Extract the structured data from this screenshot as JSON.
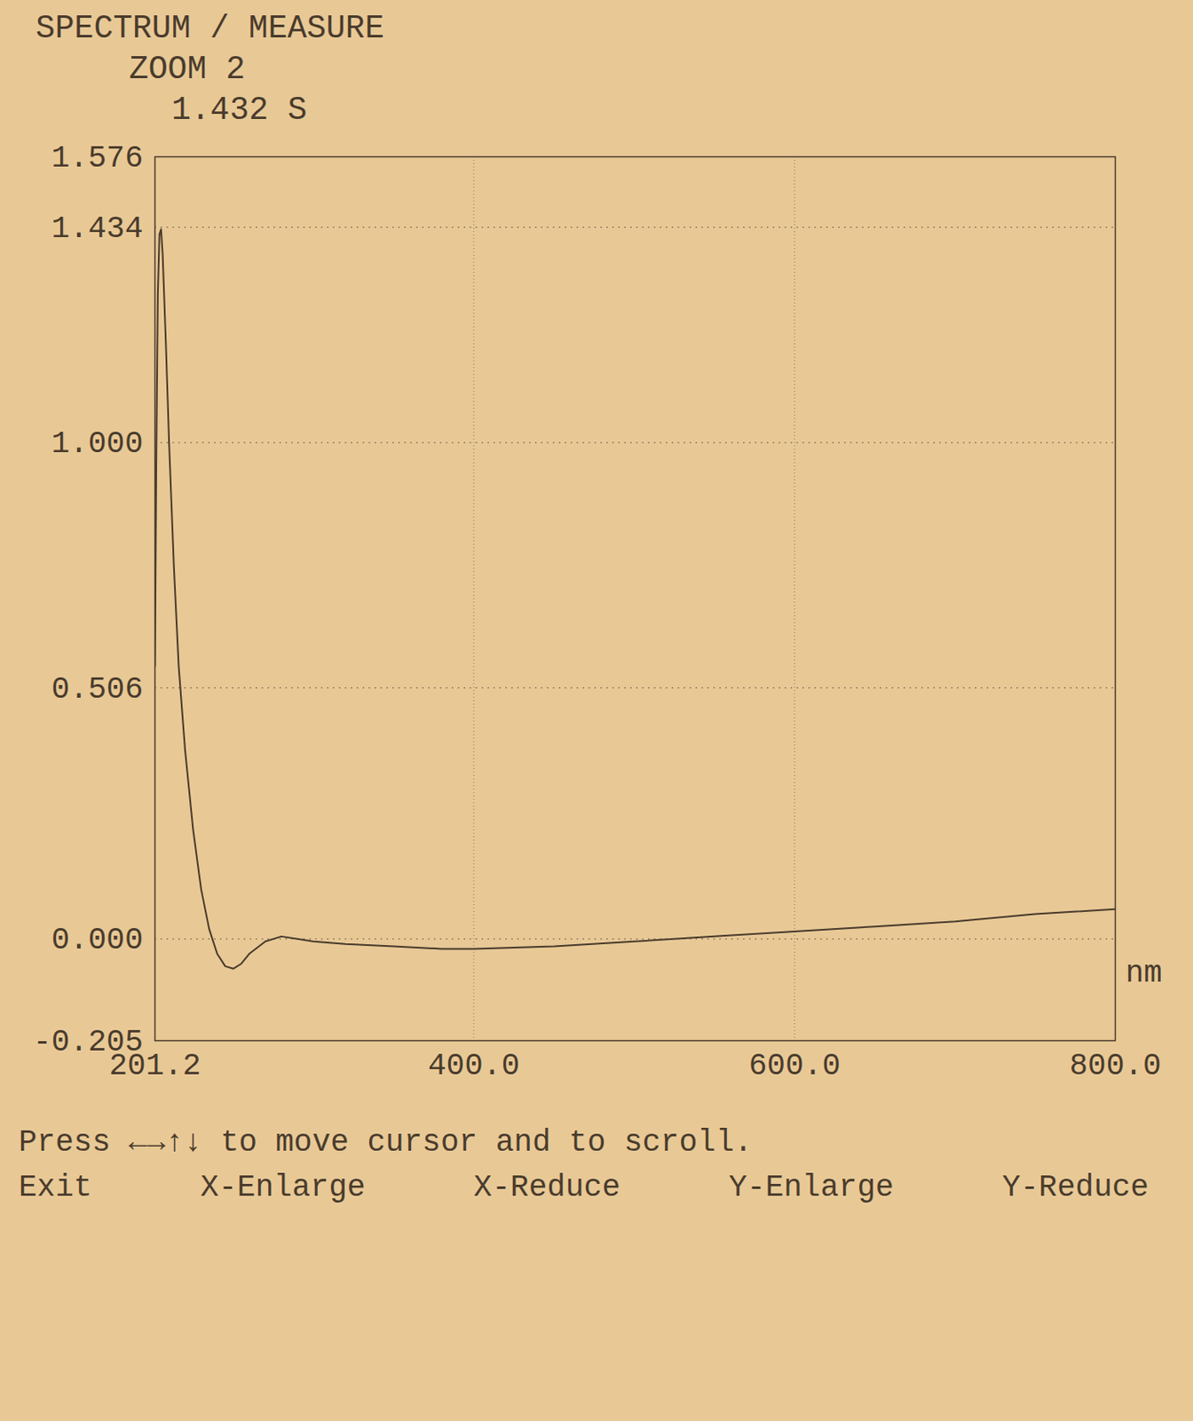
{
  "chart_data": {
    "type": "line",
    "title": "SPECTRUM / MEASURE",
    "subtitle": "ZOOM 2",
    "annotations": [
      "1.432  S"
    ],
    "x_label": "nm",
    "x": [
      201.2,
      202,
      203,
      204,
      205,
      206,
      208,
      210,
      213,
      216,
      220,
      225,
      230,
      235,
      240,
      245,
      250,
      255,
      260,
      270,
      280,
      290,
      300,
      320,
      350,
      380,
      400,
      450,
      500,
      550,
      600,
      650,
      700,
      750,
      800
    ],
    "values": [
      0.55,
      0.95,
      1.3,
      1.42,
      1.43,
      1.38,
      1.2,
      1.0,
      0.75,
      0.55,
      0.38,
      0.22,
      0.1,
      0.02,
      -0.03,
      -0.055,
      -0.06,
      -0.05,
      -0.03,
      -0.005,
      0.005,
      0.0,
      -0.005,
      -0.01,
      -0.015,
      -0.02,
      -0.02,
      -0.015,
      -0.005,
      0.005,
      0.015,
      0.025,
      0.035,
      0.05,
      0.06
    ],
    "color": "#4a3b2c",
    "xlim": [
      201.2,
      800.0
    ],
    "xticks": [
      201.2,
      {
        "value": 400,
        "label": "400.0"
      },
      {
        "value": 600,
        "label": "600.0"
      },
      {
        "value": 800,
        "label": "800.0"
      }
    ],
    "ylim": [
      -0.205,
      1.576
    ],
    "yticks": [
      -0.205,
      {
        "value": 0,
        "label": "0.000"
      },
      0.506,
      {
        "value": 1,
        "label": "1.000"
      },
      1.434,
      1.576
    ],
    "grid": true,
    "help": "Press ←→↑↓ to move cursor and to scroll.",
    "buttons": [
      "Exit",
      "X-Enlarge",
      "X-Reduce",
      "Y-Enlarge",
      "Y-Reduce"
    ]
  }
}
